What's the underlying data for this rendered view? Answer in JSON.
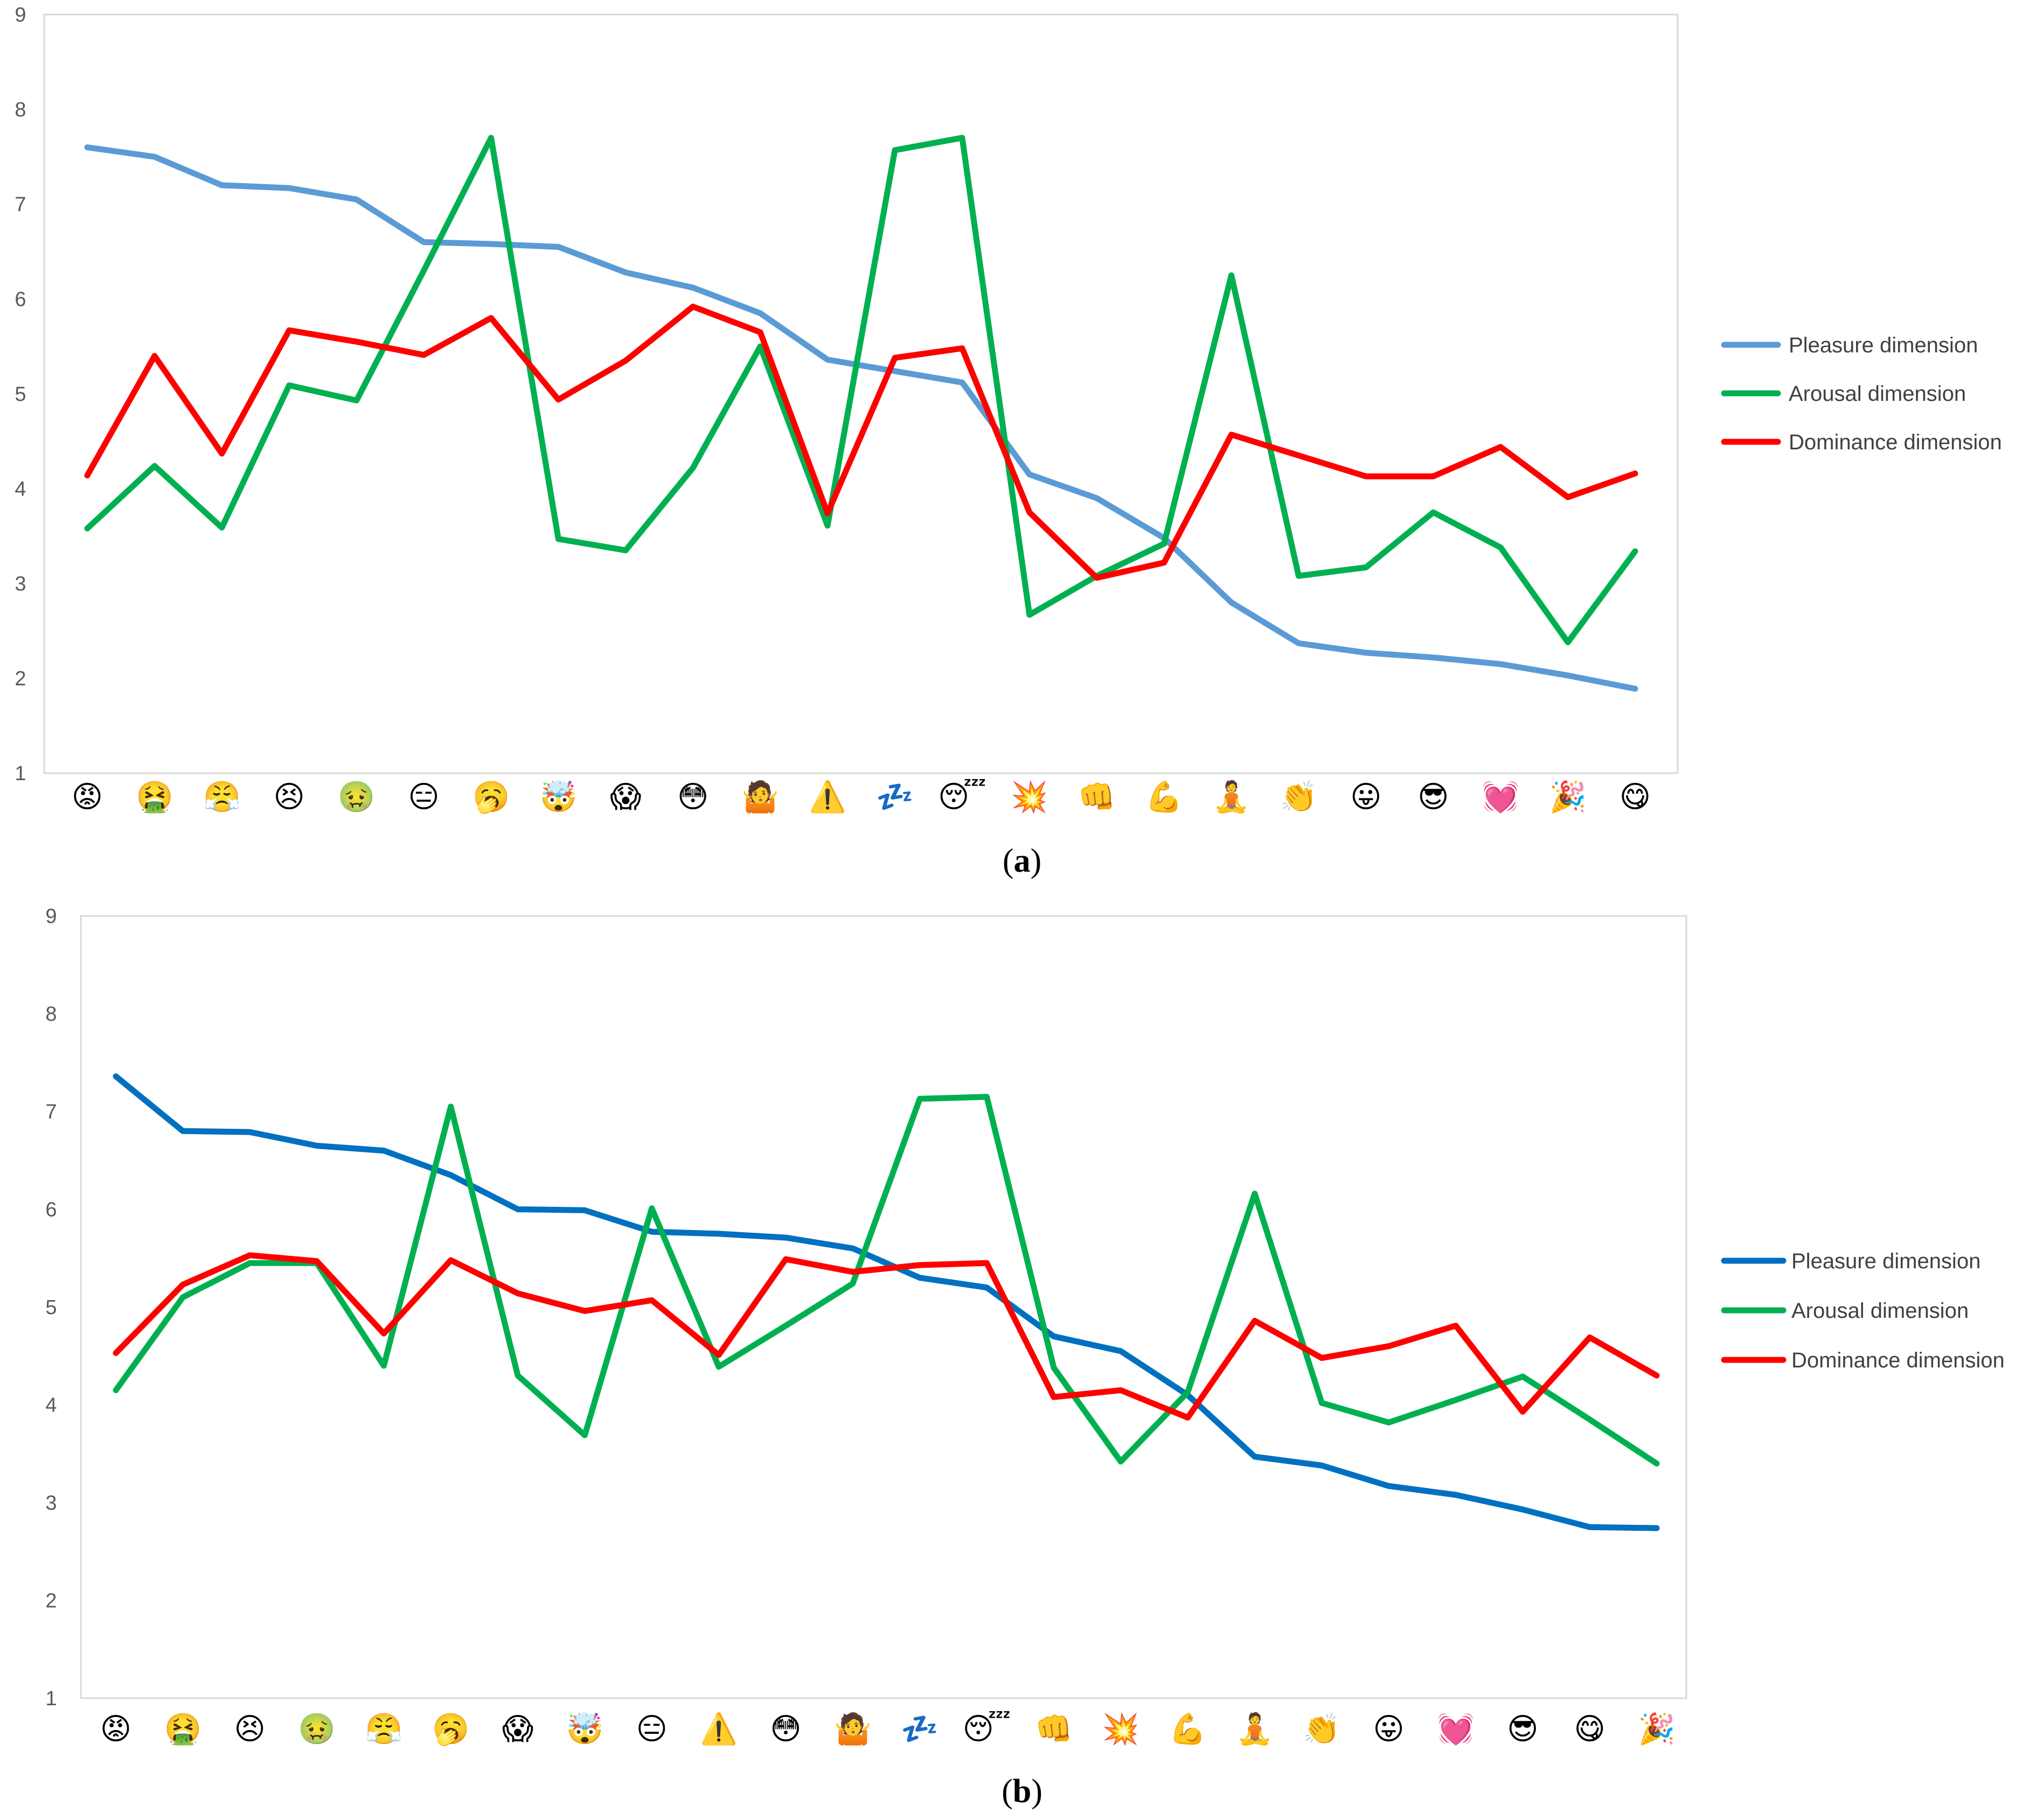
{
  "chart_data": [
    {
      "type": "line",
      "panel_label": "a",
      "ylim": [
        1,
        9
      ],
      "yticks": [
        "1",
        "2",
        "3",
        "4",
        "5",
        "6",
        "7",
        "8",
        "9"
      ],
      "categories": [
        "😡",
        "🤮",
        "😤",
        "😣",
        "🤢",
        "😑",
        "🥱",
        "🤯",
        "😱",
        "😳",
        "🤷",
        "⚠️",
        "💤",
        "😴",
        "💥",
        "👊",
        "💪",
        "🧘",
        "👏",
        "😛",
        "😎",
        "💓",
        "🎉",
        "😋"
      ],
      "series": [
        {
          "name": "Pleasure dimension",
          "color": "#5B9BD5",
          "values": [
            7.6,
            7.5,
            7.2,
            7.17,
            7.05,
            6.6,
            6.58,
            6.55,
            6.28,
            6.12,
            5.85,
            5.36,
            5.24,
            5.12,
            4.15,
            3.9,
            3.48,
            2.8,
            2.37,
            2.27,
            2.22,
            2.15,
            2.03,
            1.89
          ]
        },
        {
          "name": "Arousal dimension",
          "color": "#00B050",
          "values": [
            3.58,
            4.24,
            3.59,
            5.09,
            4.93,
            6.3,
            7.7,
            3.47,
            3.35,
            4.22,
            5.5,
            3.61,
            7.57,
            7.7,
            2.67,
            3.08,
            3.42,
            6.25,
            3.08,
            3.17,
            3.75,
            3.38,
            2.38,
            3.34
          ]
        },
        {
          "name": "Dominance dimension",
          "color": "#FF0000",
          "values": [
            4.14,
            5.4,
            4.37,
            5.67,
            5.55,
            5.41,
            5.8,
            4.94,
            5.35,
            5.92,
            5.65,
            3.74,
            5.38,
            5.48,
            3.75,
            3.06,
            3.22,
            4.57,
            4.35,
            4.13,
            4.13,
            4.44,
            3.91,
            4.16
          ]
        }
      ]
    },
    {
      "type": "line",
      "panel_label": "b",
      "ylim": [
        1,
        9
      ],
      "yticks": [
        "1",
        "2",
        "3",
        "4",
        "5",
        "6",
        "7",
        "8",
        "9"
      ],
      "categories": [
        "😡",
        "🤮",
        "😣",
        "🤢",
        "😤",
        "🥱",
        "😱",
        "🤯",
        "😑",
        "⚠️",
        "😳",
        "🤷",
        "💤",
        "😴",
        "👊",
        "💥",
        "💪",
        "🧘",
        "👏",
        "😛",
        "💓",
        "😎",
        "😋",
        "🎉"
      ],
      "series": [
        {
          "name": "Pleasure dimension",
          "color": "#0070C0",
          "values": [
            7.36,
            6.8,
            6.79,
            6.65,
            6.6,
            6.35,
            6.0,
            5.99,
            5.77,
            5.75,
            5.71,
            5.6,
            5.3,
            5.2,
            4.7,
            4.55,
            4.1,
            3.47,
            3.38,
            3.17,
            3.08,
            2.93,
            2.75,
            2.74
          ]
        },
        {
          "name": "Arousal dimension",
          "color": "#00B050",
          "values": [
            4.15,
            5.1,
            5.45,
            5.45,
            4.4,
            7.05,
            4.3,
            3.69,
            6.01,
            4.39,
            4.81,
            5.24,
            7.13,
            7.15,
            4.38,
            3.42,
            4.13,
            6.16,
            4.02,
            3.82,
            4.05,
            4.29,
            3.85,
            3.4
          ]
        },
        {
          "name": "Dominance dimension",
          "color": "#FF0000",
          "values": [
            4.53,
            5.23,
            5.53,
            5.47,
            4.73,
            5.48,
            5.14,
            4.96,
            5.07,
            4.51,
            5.49,
            5.36,
            5.43,
            5.45,
            4.08,
            4.15,
            3.87,
            4.86,
            4.48,
            4.6,
            4.81,
            3.93,
            4.69,
            4.3
          ]
        }
      ]
    }
  ],
  "panels": [
    {
      "caption": "(a)",
      "caption_letter": "a"
    },
    {
      "caption": "(b)",
      "caption_letter": "b"
    }
  ]
}
